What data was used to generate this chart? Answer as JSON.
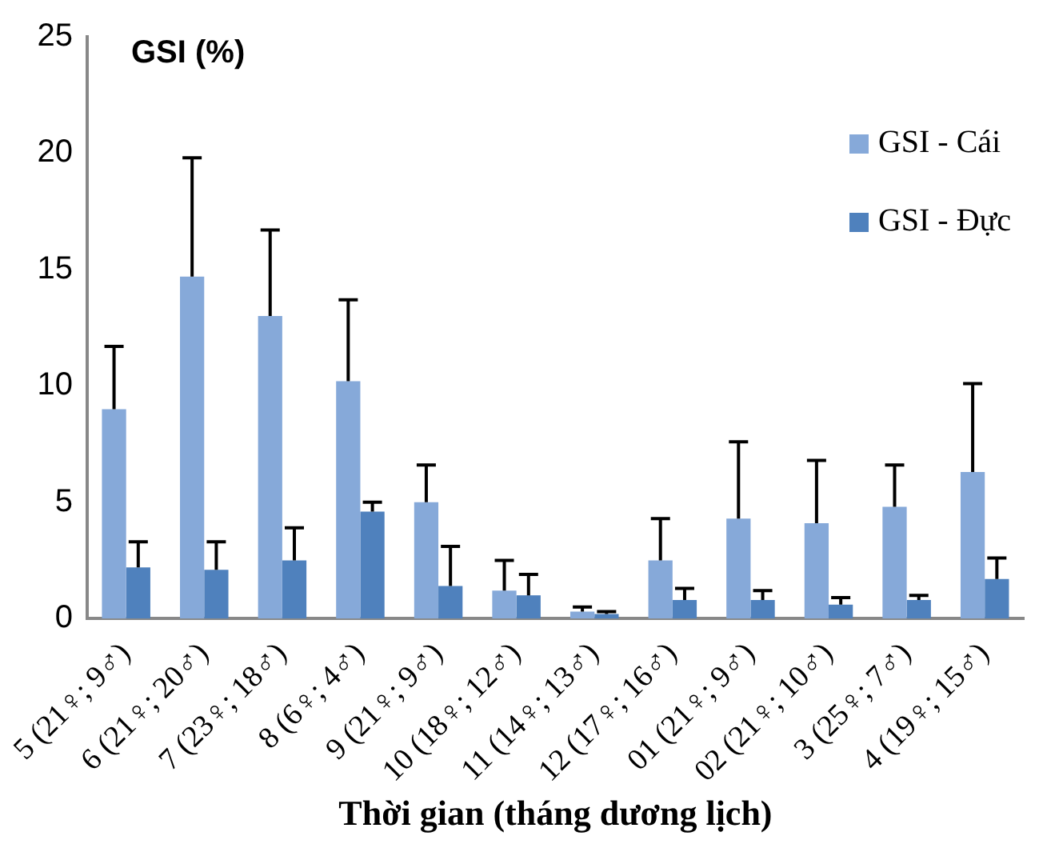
{
  "chart_data": {
    "type": "bar",
    "ylabel": "GSI (%)",
    "xlabel": "Thời gian (tháng dương lịch)",
    "categories": [
      "5 (21♀; 9♂)",
      "6 (21♀; 20♂)",
      "7 (23♀; 18♂)",
      "8 (6♀; 4♂)",
      "9 (21♀; 9♂)",
      "10 (18♀; 12♂)",
      "11 (14♀; 13♂)",
      "12 (17♀; 16♂)",
      "01 (21♀; 9♂)",
      "02 (21♀; 10♂)",
      "3 (25♀; 7♂)",
      "4 (19♀; 15♂)"
    ],
    "series": [
      {
        "name": "GSI - Cái",
        "color": "#86a9d9",
        "values": [
          9.0,
          14.7,
          13.0,
          10.2,
          5.0,
          1.2,
          0.3,
          2.5,
          4.3,
          4.1,
          4.8,
          6.3
        ],
        "errors": [
          [
            9.0,
            11.7
          ],
          [
            14.7,
            19.8
          ],
          [
            13.0,
            16.7
          ],
          [
            10.2,
            13.7
          ],
          [
            5.0,
            6.6
          ],
          [
            1.2,
            2.5
          ],
          [
            0.3,
            0.5
          ],
          [
            2.5,
            4.3
          ],
          [
            4.3,
            7.6
          ],
          [
            4.1,
            6.8
          ],
          [
            4.8,
            6.6
          ],
          [
            6.3,
            10.1
          ]
        ]
      },
      {
        "name": "GSI - Đực",
        "color": "#4f81bd",
        "values": [
          2.2,
          2.1,
          2.5,
          4.6,
          1.4,
          1.0,
          0.2,
          0.8,
          0.8,
          0.6,
          0.8,
          1.7
        ],
        "errors": [
          [
            2.2,
            3.3
          ],
          [
            2.1,
            3.3
          ],
          [
            2.5,
            3.9
          ],
          [
            4.6,
            5.0
          ],
          [
            1.4,
            3.1
          ],
          [
            1.0,
            1.9
          ],
          [
            0.2,
            0.3
          ],
          [
            0.8,
            1.3
          ],
          [
            0.8,
            1.2
          ],
          [
            0.6,
            0.9
          ],
          [
            0.8,
            1.0
          ],
          [
            1.7,
            2.6
          ]
        ]
      }
    ],
    "ylim": [
      0,
      25
    ],
    "yticks": [
      0,
      5,
      10,
      15,
      20,
      25
    ],
    "grid": false,
    "legend": "top right"
  }
}
